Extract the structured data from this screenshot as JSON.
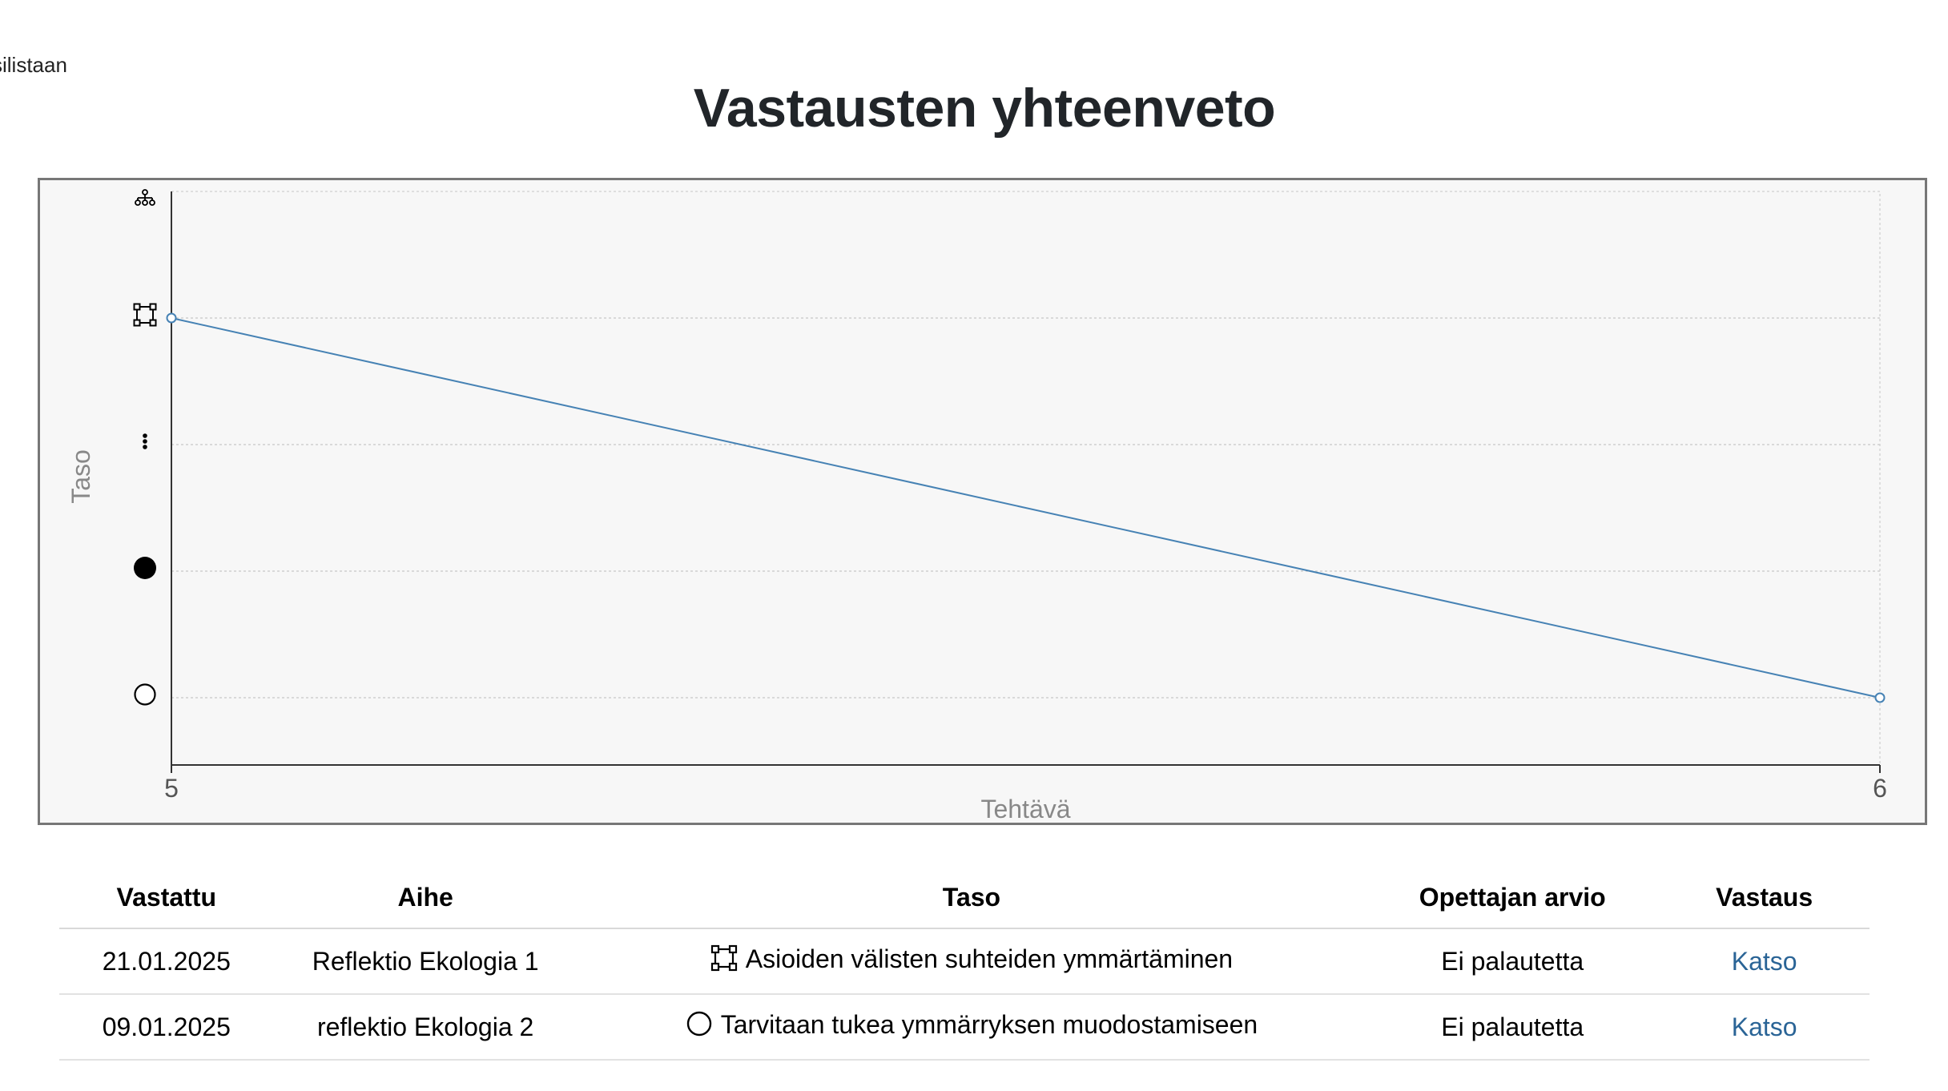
{
  "corner_text": "silistaan",
  "page_title": "Vastausten yhteenveto",
  "chart_data": {
    "type": "line",
    "xlabel": "Tehtävä",
    "ylabel": "Taso",
    "x_ticks": [
      "5",
      "6"
    ],
    "xlim": [
      5,
      6
    ],
    "y_levels": [
      1,
      2,
      3,
      4,
      5
    ],
    "y_tick_icons": [
      "empty-circle-icon",
      "filled-circle-icon",
      "vertical-dots-icon",
      "square-nodes-icon",
      "hierarchy-icon"
    ],
    "ylim": [
      1,
      5
    ],
    "grid": true,
    "series": [
      {
        "x": [
          5,
          6
        ],
        "y": [
          4,
          1
        ],
        "color": "#4682b4"
      }
    ]
  },
  "table": {
    "headers": {
      "date": "Vastattu",
      "topic": "Aihe",
      "level": "Taso",
      "grade": "Opettajan arvio",
      "answer": "Vastaus"
    },
    "rows": [
      {
        "date": "21.01.2025",
        "topic": "Reflektio Ekologia 1",
        "level_icon": "square-nodes-icon",
        "level": "Asioiden välisten suhteiden ymmärtäminen",
        "grade": "Ei palautetta",
        "answer": "Katso"
      },
      {
        "date": "09.01.2025",
        "topic": "reflektio Ekologia 2",
        "level_icon": "empty-circle-icon",
        "level": "Tarvitaan tukea ymmärryksen muodostamiseen",
        "grade": "Ei palautetta",
        "answer": "Katso"
      }
    ]
  },
  "colors": {
    "line": "#4682b4",
    "link": "#2a6496",
    "chart_bg": "#f7f7f7",
    "axis_text": "#888888"
  }
}
